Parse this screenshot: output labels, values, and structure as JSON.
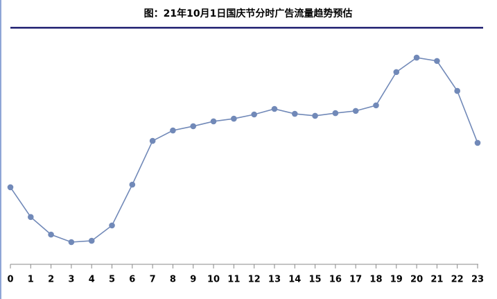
{
  "chart_data": {
    "type": "line",
    "title": "图：21年10月1日国庆节分时广告流量趋势预估",
    "categories": [
      "0",
      "1",
      "2",
      "3",
      "4",
      "5",
      "6",
      "7",
      "8",
      "9",
      "10",
      "11",
      "12",
      "13",
      "14",
      "15",
      "16",
      "17",
      "18",
      "19",
      "20",
      "21",
      "22",
      "23"
    ],
    "series": [
      {
        "color": "#7189b8",
        "values": [
          34.7,
          21.3,
          13.4,
          10,
          10.6,
          17.5,
          35.9,
          55.6,
          60.3,
          62.2,
          64.4,
          65.6,
          67.5,
          70,
          67.8,
          66.9,
          68.1,
          69.1,
          71.6,
          86.6,
          93.1,
          91.6,
          78.1,
          54.7
        ]
      }
    ],
    "ylim": [
      0,
      100
    ]
  }
}
